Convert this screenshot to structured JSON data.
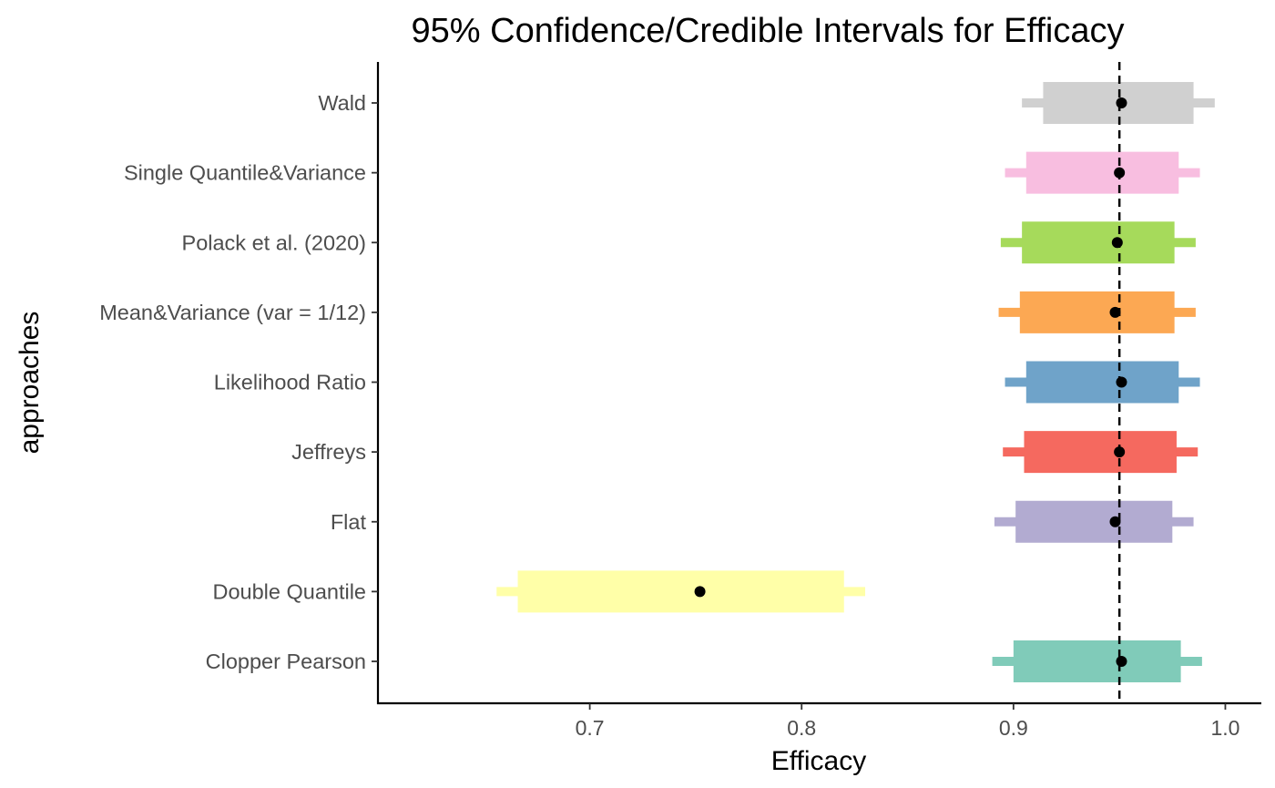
{
  "chart_data": {
    "type": "interval",
    "title": "95% Confidence/Credible Intervals for Efficacy",
    "xlabel": "Efficacy",
    "ylabel": "approaches",
    "xlim": [
      0.6,
      1.017
    ],
    "x_ticks": [
      0.7,
      0.8,
      0.9,
      1.0
    ],
    "x_tick_labels": [
      "0.7",
      "0.8",
      "0.9",
      "1.0"
    ],
    "reference_line": {
      "value": 0.95,
      "style": "dashed",
      "color": "#000000"
    },
    "grid": false,
    "legend": "none",
    "categories": [
      "Clopper Pearson",
      "Double Quantile",
      "Flat",
      "Jeffreys",
      "Likelihood Ratio",
      "Mean&Variance (var = 1/12)",
      "Polack et al. (2020)",
      "Single Quantile&Variance",
      "Wald"
    ],
    "intervals": [
      {
        "category": "Clopper Pearson",
        "estimate": 0.951,
        "inner_low": 0.9,
        "inner_high": 0.979,
        "outer_low": 0.89,
        "outer_high": 0.989,
        "color": "#80CBB9"
      },
      {
        "category": "Double Quantile",
        "estimate": 0.752,
        "inner_low": 0.666,
        "inner_high": 0.82,
        "outer_low": 0.656,
        "outer_high": 0.83,
        "color": "#FFFFA8"
      },
      {
        "category": "Flat",
        "estimate": 0.948,
        "inner_low": 0.901,
        "inner_high": 0.975,
        "outer_low": 0.891,
        "outer_high": 0.985,
        "color": "#B2ABD1"
      },
      {
        "category": "Jeffreys",
        "estimate": 0.95,
        "inner_low": 0.905,
        "inner_high": 0.977,
        "outer_low": 0.895,
        "outer_high": 0.987,
        "color": "#F5695F"
      },
      {
        "category": "Likelihood Ratio",
        "estimate": 0.951,
        "inner_low": 0.906,
        "inner_high": 0.978,
        "outer_low": 0.896,
        "outer_high": 0.988,
        "color": "#6FA3C9"
      },
      {
        "category": "Mean&Variance (var = 1/12)",
        "estimate": 0.948,
        "inner_low": 0.903,
        "inner_high": 0.976,
        "outer_low": 0.893,
        "outer_high": 0.986,
        "color": "#FCA853"
      },
      {
        "category": "Polack et al. (2020)",
        "estimate": 0.949,
        "inner_low": 0.904,
        "inner_high": 0.976,
        "outer_low": 0.894,
        "outer_high": 0.986,
        "color": "#A6DA5B"
      },
      {
        "category": "Single Quantile&Variance",
        "estimate": 0.95,
        "inner_low": 0.906,
        "inner_high": 0.978,
        "outer_low": 0.896,
        "outer_high": 0.988,
        "color": "#F8BEE0"
      },
      {
        "category": "Wald",
        "estimate": 0.951,
        "inner_low": 0.914,
        "inner_high": 0.985,
        "outer_low": 0.904,
        "outer_high": 0.995,
        "color": "#D0D0D0"
      }
    ]
  }
}
